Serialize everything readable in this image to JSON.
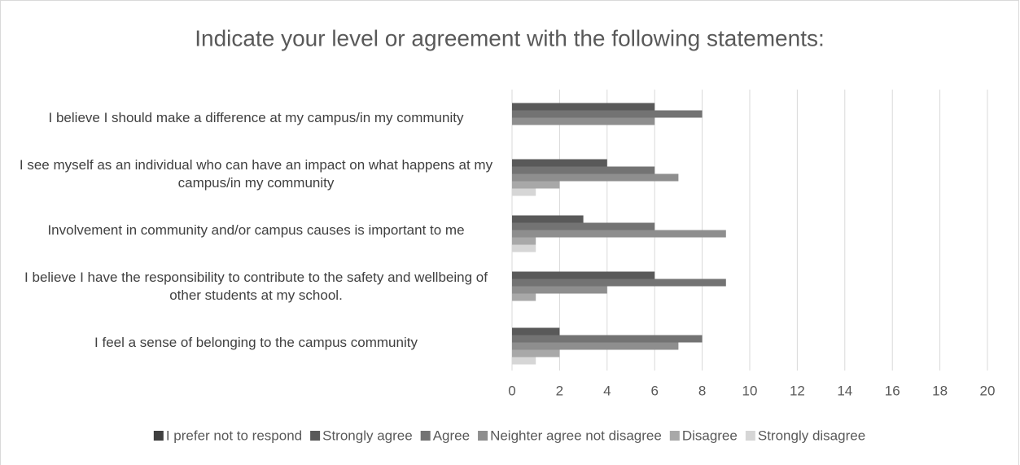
{
  "chart_data": {
    "type": "bar",
    "orientation": "horizontal",
    "title": "Indicate your level or agreement with the following statements:",
    "categories": [
      "I believe I should make a difference at my campus/in my community",
      "I see myself as an individual who can have an impact on what happens at my campus/in my community",
      "Involvement in community and/or campus causes is important to me",
      "I believe I have the responsibility to contribute to the safety and wellbeing of other students at my school.",
      "I feel a sense of belonging to the campus community"
    ],
    "series": [
      {
        "name": "I prefer not to respond",
        "color": "#3f3f3f",
        "values": [
          0,
          0,
          0,
          0,
          0
        ]
      },
      {
        "name": "Strongly agree",
        "color": "#595959",
        "values": [
          6,
          4,
          3,
          6,
          2
        ]
      },
      {
        "name": "Agree",
        "color": "#737373",
        "values": [
          8,
          6,
          6,
          9,
          8
        ]
      },
      {
        "name": "Neighter agree not disagree",
        "color": "#8e8e8e",
        "values": [
          6,
          7,
          9,
          4,
          7
        ]
      },
      {
        "name": "Disagree",
        "color": "#a8a8a8",
        "values": [
          0,
          2,
          1,
          1,
          2
        ]
      },
      {
        "name": "Strongly disagree",
        "color": "#d6d6d6",
        "values": [
          0,
          1,
          1,
          0,
          1
        ]
      }
    ],
    "xlim": [
      0,
      20
    ],
    "xticks": [
      0,
      2,
      4,
      6,
      8,
      10,
      12,
      14,
      16,
      18,
      20
    ],
    "grid": true,
    "legend": "bottom"
  }
}
